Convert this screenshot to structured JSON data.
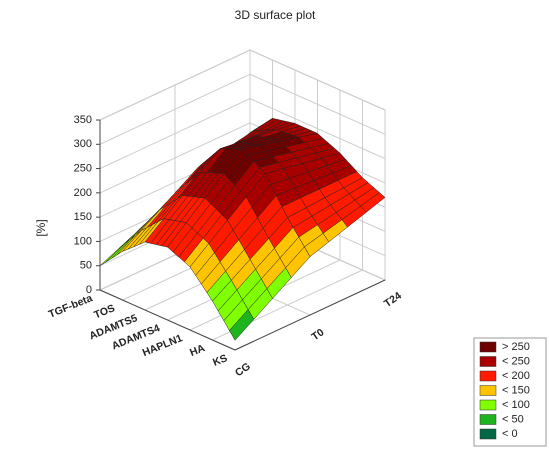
{
  "chart_data": {
    "type": "surface",
    "title": "3D surface plot",
    "zlabel": "[%]",
    "x_categories": [
      "TGF-beta",
      "TOS",
      "ADAMTS5",
      "ADAMTS4",
      "HAPLN1",
      "HA",
      "KS"
    ],
    "y_categories": [
      "CG",
      "T0",
      "T24"
    ],
    "values": [
      [
        50,
        120,
        180
      ],
      [
        100,
        200,
        230
      ],
      [
        140,
        260,
        240
      ],
      [
        150,
        280,
        240
      ],
      [
        130,
        250,
        220
      ],
      [
        80,
        180,
        190
      ],
      [
        20,
        120,
        170
      ]
    ],
    "zlim": [
      0,
      350
    ],
    "zticks": [
      0,
      50,
      100,
      150,
      200,
      250,
      300,
      350
    ],
    "grid": true,
    "legend": [
      {
        "label": "> 250",
        "value": 250,
        "color": "#6e0000"
      },
      {
        "label": "< 250",
        "value": 250,
        "color": "#a80000"
      },
      {
        "label": "< 200",
        "value": 200,
        "color": "#ff1a00"
      },
      {
        "label": "< 150",
        "value": 150,
        "color": "#ffc400"
      },
      {
        "label": "< 100",
        "value": 100,
        "color": "#80ff00"
      },
      {
        "label": "< 50",
        "value": 50,
        "color": "#1eb41e"
      },
      {
        "label": "< 0",
        "value": 0,
        "color": "#006845"
      }
    ]
  }
}
